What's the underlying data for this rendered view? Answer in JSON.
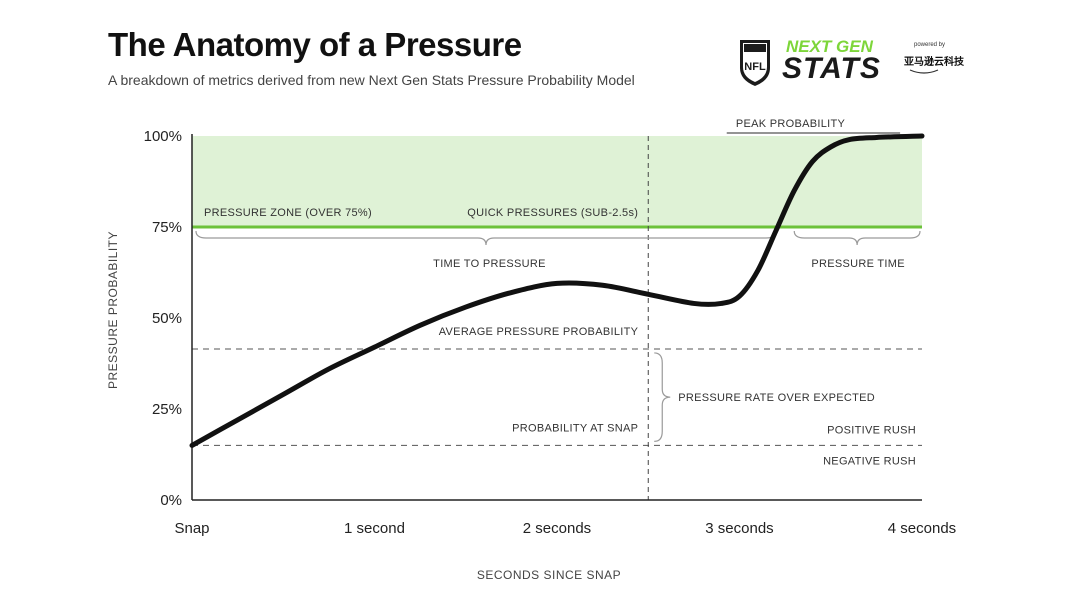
{
  "header": {
    "title": "The Anatomy of a Pressure",
    "subtitle": "A breakdown of metrics derived from new Next Gen Stats Pressure Probability Model"
  },
  "logo": {
    "nfl": "NFL",
    "line1": "NEXT GEN",
    "line2": "STATS",
    "powered_by": "powered by",
    "sponsor": "亚马逊云科技",
    "accent_color": "#7dd63a"
  },
  "chart_data": {
    "type": "line",
    "title": "The Anatomy of a Pressure",
    "xlabel": "SECONDS SINCE SNAP",
    "ylabel": "PRESSURE PROBABILITY",
    "xlim": [
      0,
      4
    ],
    "ylim": [
      0,
      100
    ],
    "x_ticks": [
      {
        "value": 0,
        "label": "Snap"
      },
      {
        "value": 1,
        "label": "1 second"
      },
      {
        "value": 2,
        "label": "2 seconds"
      },
      {
        "value": 3,
        "label": "3 seconds"
      },
      {
        "value": 4,
        "label": "4 seconds"
      }
    ],
    "y_ticks": [
      {
        "value": 0,
        "label": "0%"
      },
      {
        "value": 25,
        "label": "25%"
      },
      {
        "value": 50,
        "label": "50%"
      },
      {
        "value": 75,
        "label": "75%"
      },
      {
        "value": 100,
        "label": "100%"
      }
    ],
    "series": [
      {
        "x": [
          0,
          0.25,
          0.5,
          0.75,
          1.0,
          1.25,
          1.5,
          1.75,
          2.0,
          2.25,
          2.5,
          2.75,
          2.9,
          3.0,
          3.1,
          3.2,
          3.3,
          3.4,
          3.5,
          3.6,
          3.75,
          4.0
        ],
        "y": [
          15,
          22,
          29,
          36,
          42,
          48,
          53,
          57,
          59.5,
          59,
          56.5,
          54,
          54,
          56,
          63,
          74,
          85,
          93,
          97,
          99,
          99.6,
          100
        ]
      }
    ],
    "pressure_zone": {
      "threshold": 75,
      "color": "#dff2d6",
      "line_color": "#6cc23a"
    },
    "reference_lines": [
      {
        "name": "average_pressure_probability",
        "y": 41.5
      },
      {
        "name": "probability_at_snap",
        "y": 15
      }
    ],
    "vertical_line": {
      "x": 2.5
    },
    "annotations": {
      "peak_probability": "PEAK PROBABILITY",
      "pressure_zone": "PRESSURE ZONE (OVER 75%)",
      "quick_pressures": "QUICK PRESSURES (SUB-2.5s)",
      "time_to_pressure": "TIME TO PRESSURE",
      "pressure_time": "PRESSURE TIME",
      "average_pressure_probability": "AVERAGE PRESSURE PROBABILITY",
      "pressure_rate_over_expected": "PRESSURE RATE OVER EXPECTED",
      "probability_at_snap": "PROBABILITY AT SNAP",
      "positive_rush": "POSITIVE RUSH",
      "negative_rush": "NEGATIVE RUSH"
    },
    "grid": false
  }
}
